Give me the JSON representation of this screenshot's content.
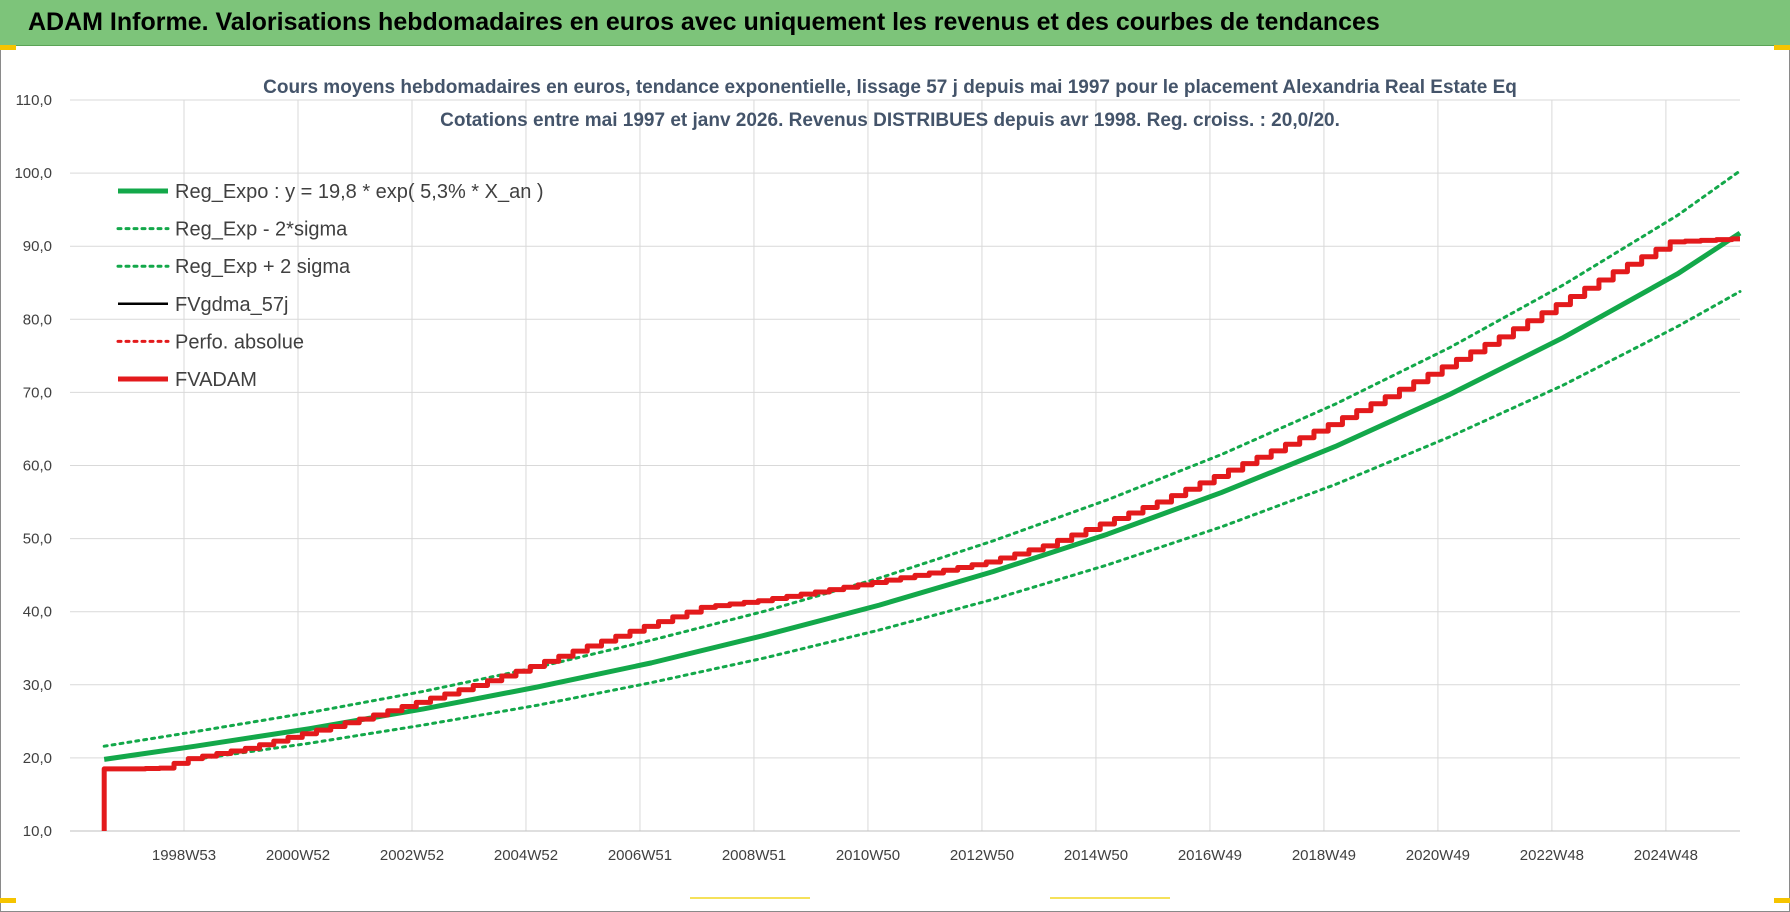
{
  "header": {
    "title": "ADAM Informe. Valorisations hebdomadaires en euros avec uniquement les revenus et des courbes de tendances"
  },
  "colors": {
    "banner": "#7dc47a",
    "reg_green": "#13a84a",
    "fvadam_red": "#e31a1c",
    "fvgdma_black": "#000000"
  },
  "chart_data": {
    "type": "line",
    "title": "Cours moyens hebdomadaires en euros, tendance exponentielle, lissage 57 j depuis mai 1997 pour le placement Alexandria Real Estate Eq",
    "subtitle": "Cotations entre mai 1997 et janv 2026. Revenus DISTRIBUES depuis avr 1998. Reg. croiss. : 20,0/20.",
    "xlabel": "",
    "ylabel": "",
    "ylim": [
      10,
      110
    ],
    "xlim": [
      1996.8,
      2026.1
    ],
    "grid": true,
    "legend_position": "top-left",
    "y_ticks": [
      "10,0",
      "20,0",
      "30,0",
      "40,0",
      "50,0",
      "60,0",
      "70,0",
      "80,0",
      "90,0",
      "100,0",
      "110,0"
    ],
    "x_ticks": [
      {
        "label": "1998W53",
        "x": 1998.8
      },
      {
        "label": "2000W52",
        "x": 2000.8
      },
      {
        "label": "2002W52",
        "x": 2002.8
      },
      {
        "label": "2004W52",
        "x": 2004.8
      },
      {
        "label": "2006W51",
        "x": 2006.8
      },
      {
        "label": "2008W51",
        "x": 2008.8
      },
      {
        "label": "2010W50",
        "x": 2010.8
      },
      {
        "label": "2012W50",
        "x": 2012.8
      },
      {
        "label": "2014W50",
        "x": 2014.8
      },
      {
        "label": "2016W49",
        "x": 2016.8
      },
      {
        "label": "2018W49",
        "x": 2018.8
      },
      {
        "label": "2020W49",
        "x": 2020.8
      },
      {
        "label": "2022W48",
        "x": 2022.8
      },
      {
        "label": "2024W48",
        "x": 2024.8
      }
    ],
    "series": [
      {
        "name": "Reg_Expo : y = 19,8 * exp( 5,3% *  X_an )",
        "style": "solid-thick",
        "color": "#13a84a",
        "x": [
          1997.4,
          1999,
          2001,
          2003,
          2005,
          2007,
          2009,
          2011,
          2013,
          2015,
          2017,
          2019,
          2021,
          2023,
          2025,
          2026.1
        ],
        "values": [
          19.8,
          21.6,
          24.0,
          26.7,
          29.7,
          33.0,
          36.8,
          40.9,
          45.5,
          50.6,
          56.3,
          62.6,
          69.7,
          77.5,
          86.2,
          91.8
        ]
      },
      {
        "name": "Reg_Exp - 2*sigma",
        "style": "dotted",
        "color": "#13a84a",
        "x": [
          1999,
          2001,
          2003,
          2005,
          2007,
          2009,
          2011,
          2013,
          2015,
          2017,
          2019,
          2021,
          2023,
          2025,
          2026.1
        ],
        "values": [
          19.8,
          22.0,
          24.5,
          27.2,
          30.3,
          33.7,
          37.5,
          41.7,
          46.4,
          51.6,
          57.4,
          63.9,
          71.0,
          79.0,
          83.8
        ]
      },
      {
        "name": "Reg_Exp + 2 sigma",
        "style": "dotted",
        "color": "#13a84a",
        "x": [
          1997.4,
          1999,
          2001,
          2003,
          2005,
          2007,
          2009,
          2011,
          2013,
          2015,
          2017,
          2019,
          2021,
          2023,
          2025,
          2026.1
        ],
        "values": [
          21.6,
          23.6,
          26.2,
          29.1,
          32.4,
          36.1,
          40.1,
          44.6,
          49.7,
          55.3,
          61.5,
          68.4,
          76.1,
          84.7,
          94.2,
          100.3
        ]
      },
      {
        "name": "FVgdma_57j",
        "style": "solid",
        "color": "#000000",
        "x": [],
        "values": []
      },
      {
        "name": "Perfo. absolue",
        "style": "dotted",
        "color": "#e31a1c",
        "x": [],
        "values": []
      },
      {
        "name": "FVADAM",
        "style": "solid-thick",
        "color": "#e31a1c",
        "x": [
          1997.4,
          1997.4,
          1997.4,
          1998.0,
          1998.5,
          1999,
          2000,
          2001,
          2002,
          2003,
          2004,
          2005,
          2006,
          2007,
          2008,
          2009,
          2010,
          2011,
          2012,
          2013,
          2014,
          2015,
          2016,
          2017,
          2018,
          2019,
          2020,
          2021,
          2022,
          2023,
          2024,
          2025,
          2026.1
        ],
        "values": [
          10.0,
          18.5,
          18.5,
          18.5,
          18.6,
          19.9,
          21.3,
          23.3,
          25.3,
          27.6,
          29.9,
          32.5,
          35.3,
          38.0,
          40.6,
          41.5,
          42.7,
          44.0,
          45.3,
          46.8,
          49.0,
          52.0,
          55.0,
          58.5,
          62.0,
          65.6,
          69.4,
          73.5,
          77.6,
          82.0,
          86.5,
          90.6,
          91.0
        ]
      }
    ]
  }
}
